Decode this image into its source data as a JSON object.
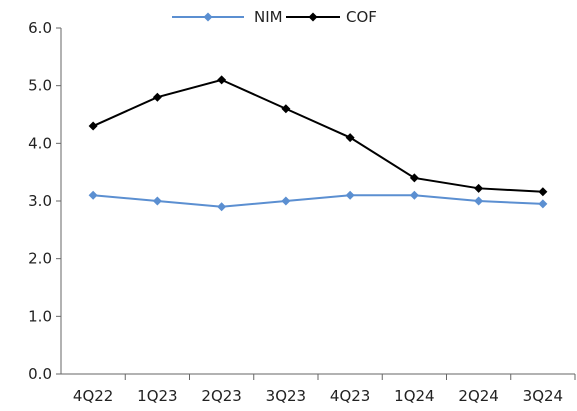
{
  "chart_data": {
    "type": "line",
    "categories": [
      "4Q22",
      "1Q23",
      "2Q23",
      "3Q23",
      "4Q23",
      "1Q24",
      "2Q24",
      "3Q24"
    ],
    "series": [
      {
        "name": "NIM",
        "color": "#5B8FD1",
        "marker": "diamond",
        "values": [
          3.1,
          3.0,
          2.9,
          3.0,
          3.1,
          3.1,
          3.0,
          2.95
        ]
      },
      {
        "name": "COF",
        "color": "#000000",
        "marker": "diamond",
        "values": [
          4.3,
          4.8,
          5.1,
          4.6,
          4.1,
          3.4,
          3.22,
          3.16
        ]
      }
    ],
    "ylim": [
      0,
      6
    ],
    "yticks": [
      "0.0",
      "1.0",
      "2.0",
      "3.0",
      "4.0",
      "5.0",
      "6.0"
    ],
    "grid": false,
    "legend_position": "top-center"
  }
}
